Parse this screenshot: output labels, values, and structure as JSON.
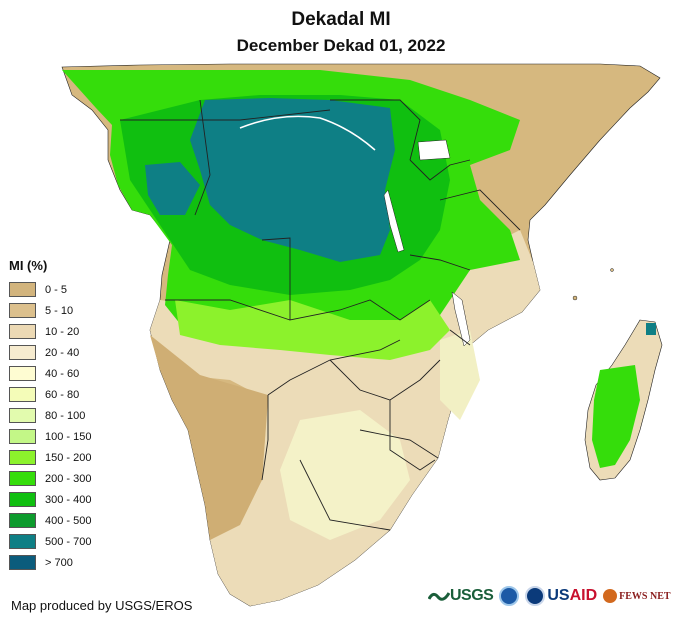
{
  "header": {
    "title": "Dekadal MI",
    "subtitle": "December Dekad 01, 2022"
  },
  "legend": {
    "title": "MI (%)",
    "items": [
      {
        "label": "0 - 5",
        "color": "#d2b47d"
      },
      {
        "label": "5 - 10",
        "color": "#dcc08d"
      },
      {
        "label": "10 - 20",
        "color": "#ecd9b4"
      },
      {
        "label": "20 - 40",
        "color": "#f6ebcf"
      },
      {
        "label": "40 - 60",
        "color": "#fefcd2"
      },
      {
        "label": "60 - 80",
        "color": "#f4fcb8"
      },
      {
        "label": "80 - 100",
        "color": "#e2fbae"
      },
      {
        "label": "100 - 150",
        "color": "#c3f787"
      },
      {
        "label": "150 - 200",
        "color": "#8cf22c"
      },
      {
        "label": "200 - 300",
        "color": "#35dd0b"
      },
      {
        "label": "300 - 400",
        "color": "#10bf10"
      },
      {
        "label": "400 - 500",
        "color": "#0d9b2d"
      },
      {
        "label": "500 - 700",
        "color": "#0e7f85"
      },
      {
        "label": "> 700",
        "color": "#0b5c7c"
      }
    ]
  },
  "footer": {
    "credit": "Map produced by USGS/EROS"
  },
  "logos": {
    "usgs": "USGS",
    "usaid_us": "US",
    "usaid_aid": "AID",
    "fews": "FEWS NET"
  }
}
